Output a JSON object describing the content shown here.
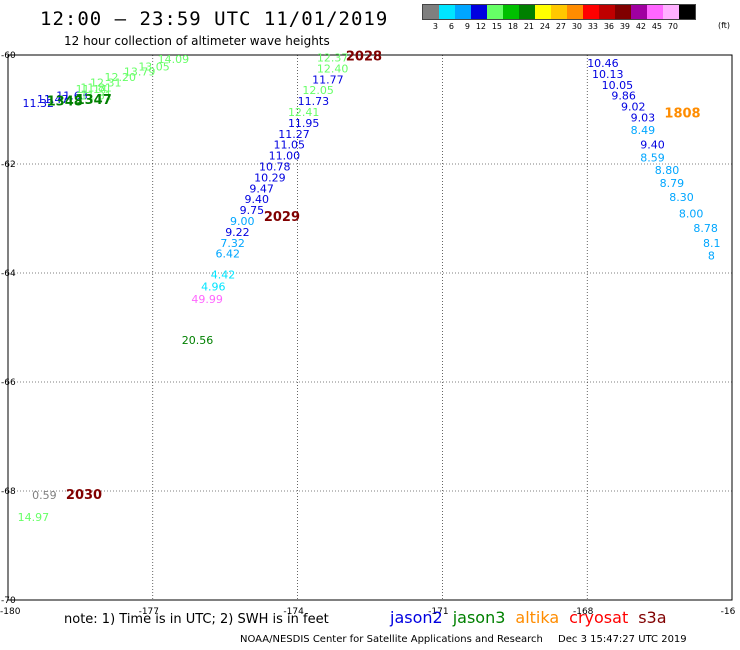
{
  "header": {
    "title": "12:00 – 23:59 UTC 11/01/2019",
    "subtitle": "12 hour collection of altimeter wave heights"
  },
  "legend": {
    "unit": "(ft)",
    "items": [
      {
        "label": "3",
        "color": "#7f7f7f"
      },
      {
        "label": "6",
        "color": "#00e5ff"
      },
      {
        "label": "9",
        "color": "#00a6ff"
      },
      {
        "label": "12",
        "color": "#0000e0"
      },
      {
        "label": "15",
        "color": "#66ff66"
      },
      {
        "label": "18",
        "color": "#00c000"
      },
      {
        "label": "21",
        "color": "#008000"
      },
      {
        "label": "24",
        "color": "#ffff00"
      },
      {
        "label": "27",
        "color": "#ffc800"
      },
      {
        "label": "30",
        "color": "#ff8c00"
      },
      {
        "label": "33",
        "color": "#ff0000"
      },
      {
        "label": "36",
        "color": "#c00000"
      },
      {
        "label": "39",
        "color": "#800000"
      },
      {
        "label": "42",
        "color": "#a000a0"
      },
      {
        "label": "45",
        "color": "#ff66ff"
      },
      {
        "label": "70",
        "color": "#ffb0ff"
      },
      {
        "label": "",
        "color": "#000000"
      }
    ]
  },
  "map": {
    "lon_range": [
      -180,
      -165
    ],
    "lat_range": [
      -70,
      -60
    ],
    "lon_ticks": [
      "-180",
      "-177",
      "-174",
      "-171",
      "-168",
      "-16"
    ],
    "lat_ticks": [
      "-60",
      "-62",
      "-64",
      "-66",
      "-68",
      "-70"
    ],
    "grid": true,
    "observations": [
      {
        "lon": -179.7,
        "lat": -60.95,
        "text": "11.32",
        "color": "#0000e0"
      },
      {
        "lon": -179.4,
        "lat": -60.88,
        "text": "11.47",
        "color": "#0000e0"
      },
      {
        "lon": -179.0,
        "lat": -60.82,
        "text": "11.63",
        "color": "#0000e0"
      },
      {
        "lon": -178.6,
        "lat": -60.7,
        "text": "11.14",
        "color": "#66ff66"
      },
      {
        "lon": -178.3,
        "lat": -60.58,
        "text": "12.31",
        "color": "#66ff66"
      },
      {
        "lon": -178.0,
        "lat": -60.48,
        "text": "12.20",
        "color": "#66ff66"
      },
      {
        "lon": -177.6,
        "lat": -60.38,
        "text": "13.79",
        "color": "#66ff66"
      },
      {
        "lon": -177.3,
        "lat": -60.28,
        "text": "13.05",
        "color": "#66ff66"
      },
      {
        "lon": -176.9,
        "lat": -60.15,
        "text": "14.09",
        "color": "#66ff66"
      },
      {
        "lon": -178.5,
        "lat": -60.82,
        "text": "11.31",
        "color": "#66ff66"
      },
      {
        "lon": -178.5,
        "lat": -60.67,
        "text": "11.81",
        "color": "#66ff66"
      },
      {
        "lon": -179.2,
        "lat": -60.93,
        "text": "1348",
        "color": "#008000",
        "bold": true
      },
      {
        "lon": -178.6,
        "lat": -60.9,
        "text": "1347",
        "color": "#008000",
        "bold": true
      },
      {
        "lon": -173.6,
        "lat": -60.12,
        "text": "12.37",
        "color": "#66ff66"
      },
      {
        "lon": -173.6,
        "lat": -60.32,
        "text": "12.40",
        "color": "#66ff66"
      },
      {
        "lon": -173.7,
        "lat": -60.52,
        "text": "11.77",
        "color": "#0000e0"
      },
      {
        "lon": -173.9,
        "lat": -60.72,
        "text": "12.05",
        "color": "#66ff66"
      },
      {
        "lon": -174.0,
        "lat": -60.92,
        "text": "11.73",
        "color": "#0000e0"
      },
      {
        "lon": -174.2,
        "lat": -61.12,
        "text": "12.41",
        "color": "#66ff66"
      },
      {
        "lon": -174.2,
        "lat": -61.32,
        "text": "11.95",
        "color": "#0000e0"
      },
      {
        "lon": -174.4,
        "lat": -61.52,
        "text": "11.27",
        "color": "#0000e0"
      },
      {
        "lon": -174.5,
        "lat": -61.72,
        "text": "11.05",
        "color": "#0000e0"
      },
      {
        "lon": -174.6,
        "lat": -61.92,
        "text": "11.00",
        "color": "#0000e0"
      },
      {
        "lon": -174.8,
        "lat": -62.12,
        "text": "10.78",
        "color": "#0000e0"
      },
      {
        "lon": -174.9,
        "lat": -62.32,
        "text": "10.29",
        "color": "#0000e0"
      },
      {
        "lon": -175.0,
        "lat": -62.52,
        "text": "9.47",
        "color": "#0000e0"
      },
      {
        "lon": -175.1,
        "lat": -62.72,
        "text": "9.40",
        "color": "#0000e0"
      },
      {
        "lon": -175.2,
        "lat": -62.92,
        "text": "9.75",
        "color": "#0000e0"
      },
      {
        "lon": -175.4,
        "lat": -63.12,
        "text": "9.00",
        "color": "#00a6ff"
      },
      {
        "lon": -175.5,
        "lat": -63.32,
        "text": "9.22",
        "color": "#0000e0"
      },
      {
        "lon": -175.6,
        "lat": -63.52,
        "text": "7.32",
        "color": "#00a6ff"
      },
      {
        "lon": -175.7,
        "lat": -63.72,
        "text": "6.42",
        "color": "#00a6ff"
      },
      {
        "lon": -175.8,
        "lat": -64.1,
        "text": "4.42",
        "color": "#00e5ff"
      },
      {
        "lon": -176.0,
        "lat": -64.32,
        "text": "4.96",
        "color": "#00e5ff"
      },
      {
        "lon": -176.2,
        "lat": -64.55,
        "text": "49.99",
        "color": "#ff66ff"
      },
      {
        "lon": -176.4,
        "lat": -65.3,
        "text": "20.56",
        "color": "#008000"
      },
      {
        "lon": -173.0,
        "lat": -60.1,
        "text": "2028",
        "color": "#800000",
        "bold": true
      },
      {
        "lon": -174.7,
        "lat": -63.05,
        "text": "2029",
        "color": "#800000",
        "bold": true
      },
      {
        "lon": -179.5,
        "lat": -68.15,
        "text": "0.59",
        "color": "#7f7f7f"
      },
      {
        "lon": -178.8,
        "lat": -68.15,
        "text": "2030",
        "color": "#800000",
        "bold": true
      },
      {
        "lon": -179.8,
        "lat": -68.55,
        "text": "14.97",
        "color": "#66ff66"
      },
      {
        "lon": -168.0,
        "lat": -60.22,
        "text": "10.46",
        "color": "#0000e0"
      },
      {
        "lon": -167.9,
        "lat": -60.42,
        "text": "10.13",
        "color": "#0000e0"
      },
      {
        "lon": -167.7,
        "lat": -60.62,
        "text": "10.05",
        "color": "#0000e0"
      },
      {
        "lon": -167.5,
        "lat": -60.82,
        "text": "9.86",
        "color": "#0000e0"
      },
      {
        "lon": -167.3,
        "lat": -61.02,
        "text": "9.02",
        "color": "#0000e0"
      },
      {
        "lon": -167.1,
        "lat": -61.22,
        "text": "9.03",
        "color": "#0000e0"
      },
      {
        "lon": -167.1,
        "lat": -61.45,
        "text": "8.49",
        "color": "#00a6ff"
      },
      {
        "lon": -166.9,
        "lat": -61.72,
        "text": "9.40",
        "color": "#0000e0"
      },
      {
        "lon": -166.9,
        "lat": -61.95,
        "text": "8.59",
        "color": "#00a6ff"
      },
      {
        "lon": -166.6,
        "lat": -62.18,
        "text": "8.80",
        "color": "#00a6ff"
      },
      {
        "lon": -166.5,
        "lat": -62.42,
        "text": "8.79",
        "color": "#00a6ff"
      },
      {
        "lon": -166.3,
        "lat": -62.68,
        "text": "8.30",
        "color": "#00a6ff"
      },
      {
        "lon": -166.1,
        "lat": -62.98,
        "text": "8.00",
        "color": "#00a6ff"
      },
      {
        "lon": -165.8,
        "lat": -63.25,
        "text": "8.78",
        "color": "#00a6ff"
      },
      {
        "lon": -165.6,
        "lat": -63.52,
        "text": "8.1",
        "color": "#00a6ff"
      },
      {
        "lon": -165.5,
        "lat": -63.75,
        "text": "8",
        "color": "#00a6ff"
      },
      {
        "lon": -166.4,
        "lat": -61.15,
        "text": "1808",
        "color": "#ff8c00",
        "bold": true
      }
    ]
  },
  "footer": {
    "note": "note:  1) Time is in UTC;  2) SWH is in feet",
    "satellites": [
      {
        "name": "jason2",
        "color": "#0000e0"
      },
      {
        "name": "jason3",
        "color": "#008000"
      },
      {
        "name": "altika",
        "color": "#ff8c00"
      },
      {
        "name": "cryosat",
        "color": "#ff0000"
      },
      {
        "name": "s3a",
        "color": "#800000"
      }
    ],
    "credit": "NOAA/NESDIS Center for Satellite Applications and Research",
    "timestamp": "Dec  3 15:47:27 UTC 2019"
  }
}
